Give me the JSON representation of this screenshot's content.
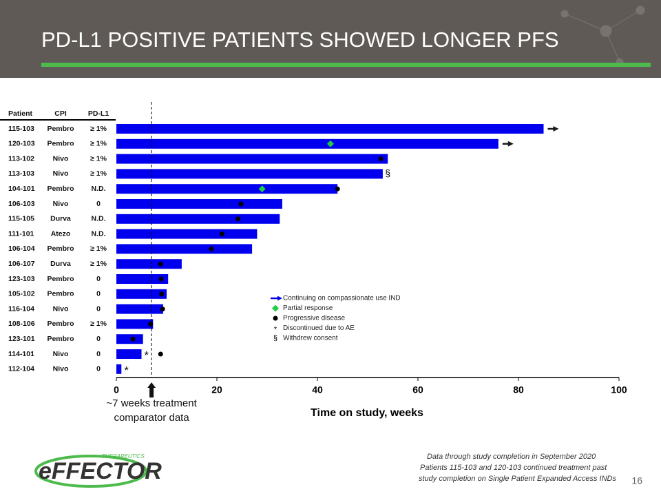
{
  "slide": {
    "title": "PD-L1 POSITIVE PATIENTS SHOWED LONGER PFS",
    "footnote": [
      "Data through study completion in September 2020",
      "Patients 115-103 and 120-103 continued treatment past",
      "study completion on Single Patient Expanded Access INDs"
    ],
    "page": "16",
    "logo": "eFFECTOR",
    "logo_sub": "THERAPEUTICS"
  },
  "chart_data": {
    "type": "swimmer",
    "columns": [
      "Patient",
      "CPI",
      "PD-L1"
    ],
    "categories": [
      "115-103",
      "120-103",
      "113-102",
      "113-103",
      "104-101",
      "106-103",
      "115-105",
      "111-101",
      "106-104",
      "106-107",
      "123-103",
      "105-102",
      "116-104",
      "108-106",
      "123-101",
      "114-101",
      "112-104"
    ],
    "cpi": [
      "Pembro",
      "Pembro",
      "Nivo",
      "Nivo",
      "Pembro",
      "Nivo",
      "Durva",
      "Atezo",
      "Pembro",
      "Durva",
      "Pembro",
      "Pembro",
      "Nivo",
      "Pembro",
      "Pembro",
      "Nivo",
      "Nivo"
    ],
    "pd_l1": [
      "≥ 1%",
      "≥ 1%",
      "≥ 1%",
      "≥ 1%",
      "N.D.",
      "0",
      "N.D.",
      "N.D.",
      "≥ 1%",
      "≥ 1%",
      "0",
      "0",
      "0",
      "≥ 1%",
      "0",
      "0",
      "0"
    ],
    "values": [
      85,
      76,
      54,
      53,
      44,
      33,
      32.5,
      28,
      27,
      13,
      10.3,
      10,
      9.3,
      7.3,
      5.3,
      5,
      1
    ],
    "color": "#0000ee",
    "series": [
      {
        "name": "Continuing on compassionate use IND",
        "marker": "arrow",
        "color": "#1a1a1a",
        "values": [
          85,
          76,
          null,
          null,
          null,
          null,
          null,
          null,
          null,
          null,
          null,
          null,
          null,
          null,
          null,
          null,
          null
        ]
      },
      {
        "name": "Partial response",
        "marker": "diamond",
        "color": "#22cc44",
        "values": [
          null,
          42.6,
          null,
          null,
          29,
          null,
          null,
          null,
          null,
          null,
          null,
          null,
          null,
          null,
          null,
          null,
          null
        ]
      },
      {
        "name": "Progressive disease",
        "marker": "circle",
        "color": "#000000",
        "values": [
          null,
          null,
          52.6,
          null,
          44,
          24.8,
          24.2,
          21,
          18.9,
          8.8,
          8.9,
          9,
          9.2,
          6.8,
          3.3,
          8.8,
          null
        ]
      },
      {
        "name": "Discontinued due to AE",
        "marker": "*",
        "color": "#000000",
        "values": [
          null,
          null,
          null,
          null,
          null,
          null,
          null,
          null,
          null,
          null,
          null,
          null,
          null,
          null,
          null,
          6,
          2
        ]
      },
      {
        "name": "Withdrew consent",
        "marker": "§",
        "color": "#000000",
        "values": [
          null,
          null,
          null,
          54,
          null,
          null,
          null,
          null,
          null,
          null,
          null,
          null,
          null,
          null,
          null,
          null,
          null
        ]
      }
    ],
    "xlim": [
      0,
      100
    ],
    "xticks": [
      0,
      20,
      40,
      60,
      80,
      100
    ],
    "xlabel": "Time on study, weeks",
    "reference": {
      "value": 7,
      "label": [
        "~7 weeks treatment",
        "comparator data"
      ]
    }
  }
}
